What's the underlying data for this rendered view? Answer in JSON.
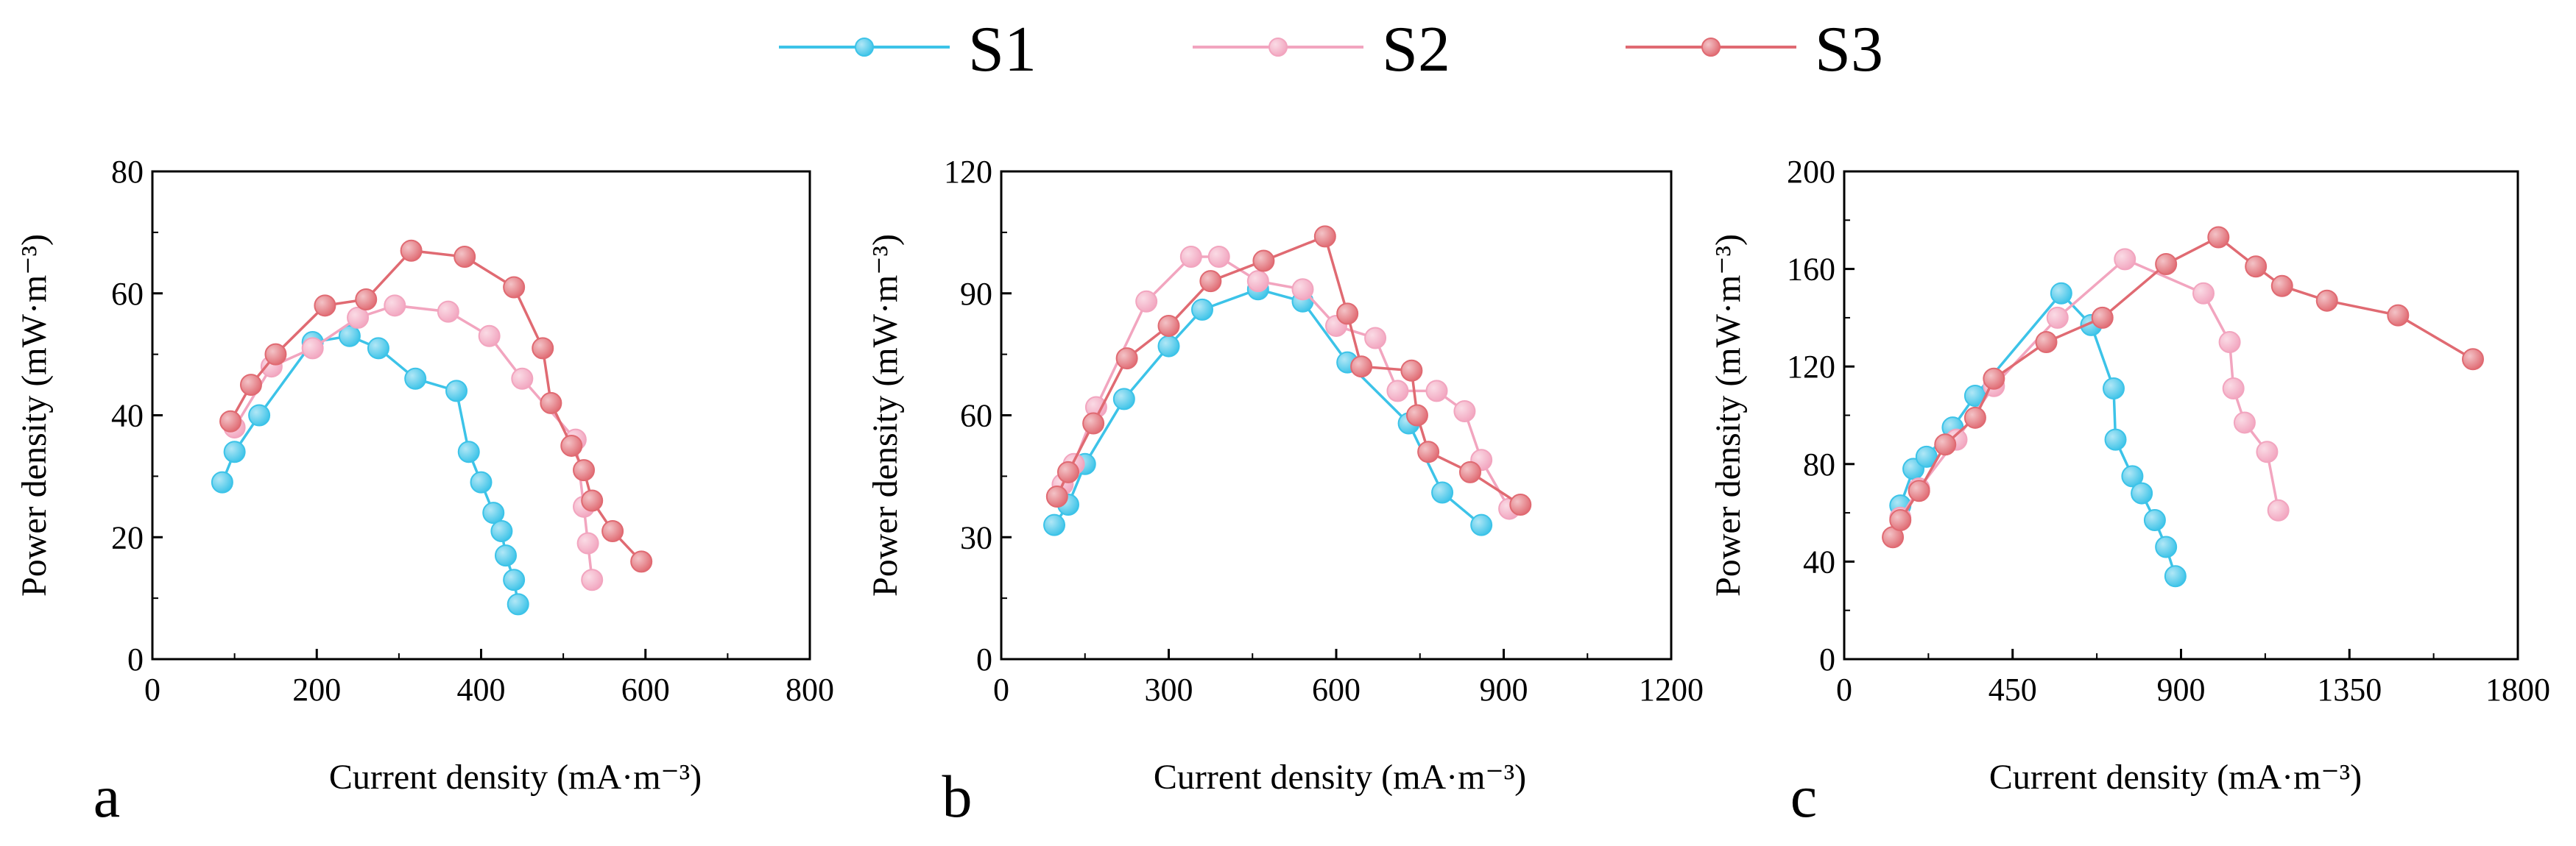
{
  "legend": [
    {
      "name": "S1",
      "color": "#3cc3e8"
    },
    {
      "name": "S2",
      "color": "#f2a5bf"
    },
    {
      "name": "S3",
      "color": "#e06a72"
    }
  ],
  "chart_data": [
    {
      "type": "line",
      "panel": "a",
      "xlabel": "Current density (mA·m⁻³)",
      "ylabel": "Power density (mW·m⁻³)",
      "xlim": [
        0,
        800
      ],
      "ylim": [
        0,
        80
      ],
      "xticks": [
        0,
        200,
        400,
        600,
        800
      ],
      "yticks": [
        0,
        20,
        40,
        60,
        80
      ],
      "series": [
        {
          "name": "S1",
          "x": [
            85,
            100,
            130,
            195,
            240,
            275,
            320,
            370,
            385,
            400,
            415,
            425,
            430,
            440,
            445
          ],
          "y": [
            29,
            34,
            40,
            52,
            53,
            51,
            46,
            44,
            34,
            29,
            24,
            21,
            17,
            13,
            9
          ]
        },
        {
          "name": "S2",
          "x": [
            100,
            145,
            195,
            250,
            295,
            360,
            410,
            450,
            515,
            525,
            530,
            535
          ],
          "y": [
            38,
            48,
            51,
            56,
            58,
            57,
            53,
            46,
            36,
            25,
            19,
            13
          ]
        },
        {
          "name": "S3",
          "x": [
            95,
            120,
            150,
            210,
            260,
            315,
            380,
            440,
            475,
            485,
            510,
            525,
            535,
            560,
            595
          ],
          "y": [
            39,
            45,
            50,
            58,
            59,
            67,
            66,
            61,
            51,
            42,
            35,
            31,
            26,
            21,
            16
          ]
        }
      ]
    },
    {
      "type": "line",
      "panel": "b",
      "xlabel": "Current density (mA·m⁻³)",
      "ylabel": "Power density (mW·m⁻³)",
      "xlim": [
        0,
        1200
      ],
      "ylim": [
        0,
        120
      ],
      "xticks": [
        0,
        300,
        600,
        900,
        1200
      ],
      "yticks": [
        0,
        30,
        60,
        90,
        120
      ],
      "series": [
        {
          "name": "S1",
          "x": [
            95,
            120,
            150,
            220,
            300,
            360,
            460,
            540,
            620,
            730,
            790,
            860
          ],
          "y": [
            33,
            38,
            48,
            64,
            77,
            86,
            91,
            88,
            73,
            58,
            41,
            33
          ]
        },
        {
          "name": "S2",
          "x": [
            110,
            130,
            170,
            260,
            340,
            390,
            460,
            540,
            600,
            670,
            710,
            780,
            830,
            860,
            910
          ],
          "y": [
            43,
            48,
            62,
            88,
            99,
            99,
            93,
            91,
            82,
            79,
            66,
            66,
            61,
            49,
            37
          ]
        },
        {
          "name": "S3",
          "x": [
            100,
            120,
            165,
            225,
            300,
            375,
            470,
            580,
            620,
            645,
            735,
            745,
            765,
            840,
            930
          ],
          "y": [
            40,
            46,
            58,
            74,
            82,
            93,
            98,
            104,
            85,
            72,
            71,
            60,
            51,
            46,
            38
          ]
        }
      ]
    },
    {
      "type": "line",
      "panel": "c",
      "xlabel": "Current density (mA·m⁻³)",
      "ylabel": "Power density (mW·m⁻³)",
      "xlim": [
        0,
        1800
      ],
      "ylim": [
        0,
        200
      ],
      "xticks": [
        0,
        450,
        900,
        1350,
        1800
      ],
      "yticks": [
        0,
        40,
        80,
        120,
        160,
        200
      ],
      "series": [
        {
          "name": "S1",
          "x": [
            150,
            185,
            220,
            290,
            350,
            580,
            660,
            720,
            725,
            770,
            795,
            830,
            860,
            885
          ],
          "y": [
            63,
            78,
            83,
            95,
            108,
            150,
            137,
            111,
            90,
            75,
            68,
            57,
            46,
            34
          ]
        },
        {
          "name": "S2",
          "x": [
            150,
            200,
            300,
            400,
            570,
            750,
            960,
            1030,
            1040,
            1070,
            1130,
            1160
          ],
          "y": [
            58,
            70,
            90,
            112,
            140,
            164,
            150,
            130,
            111,
            97,
            85,
            61
          ]
        },
        {
          "name": "S3",
          "x": [
            130,
            150,
            200,
            270,
            350,
            400,
            540,
            690,
            860,
            1000,
            1100,
            1170,
            1290,
            1480,
            1680
          ],
          "y": [
            50,
            57,
            69,
            88,
            99,
            115,
            130,
            140,
            162,
            173,
            161,
            153,
            147,
            141,
            123
          ]
        }
      ]
    }
  ]
}
